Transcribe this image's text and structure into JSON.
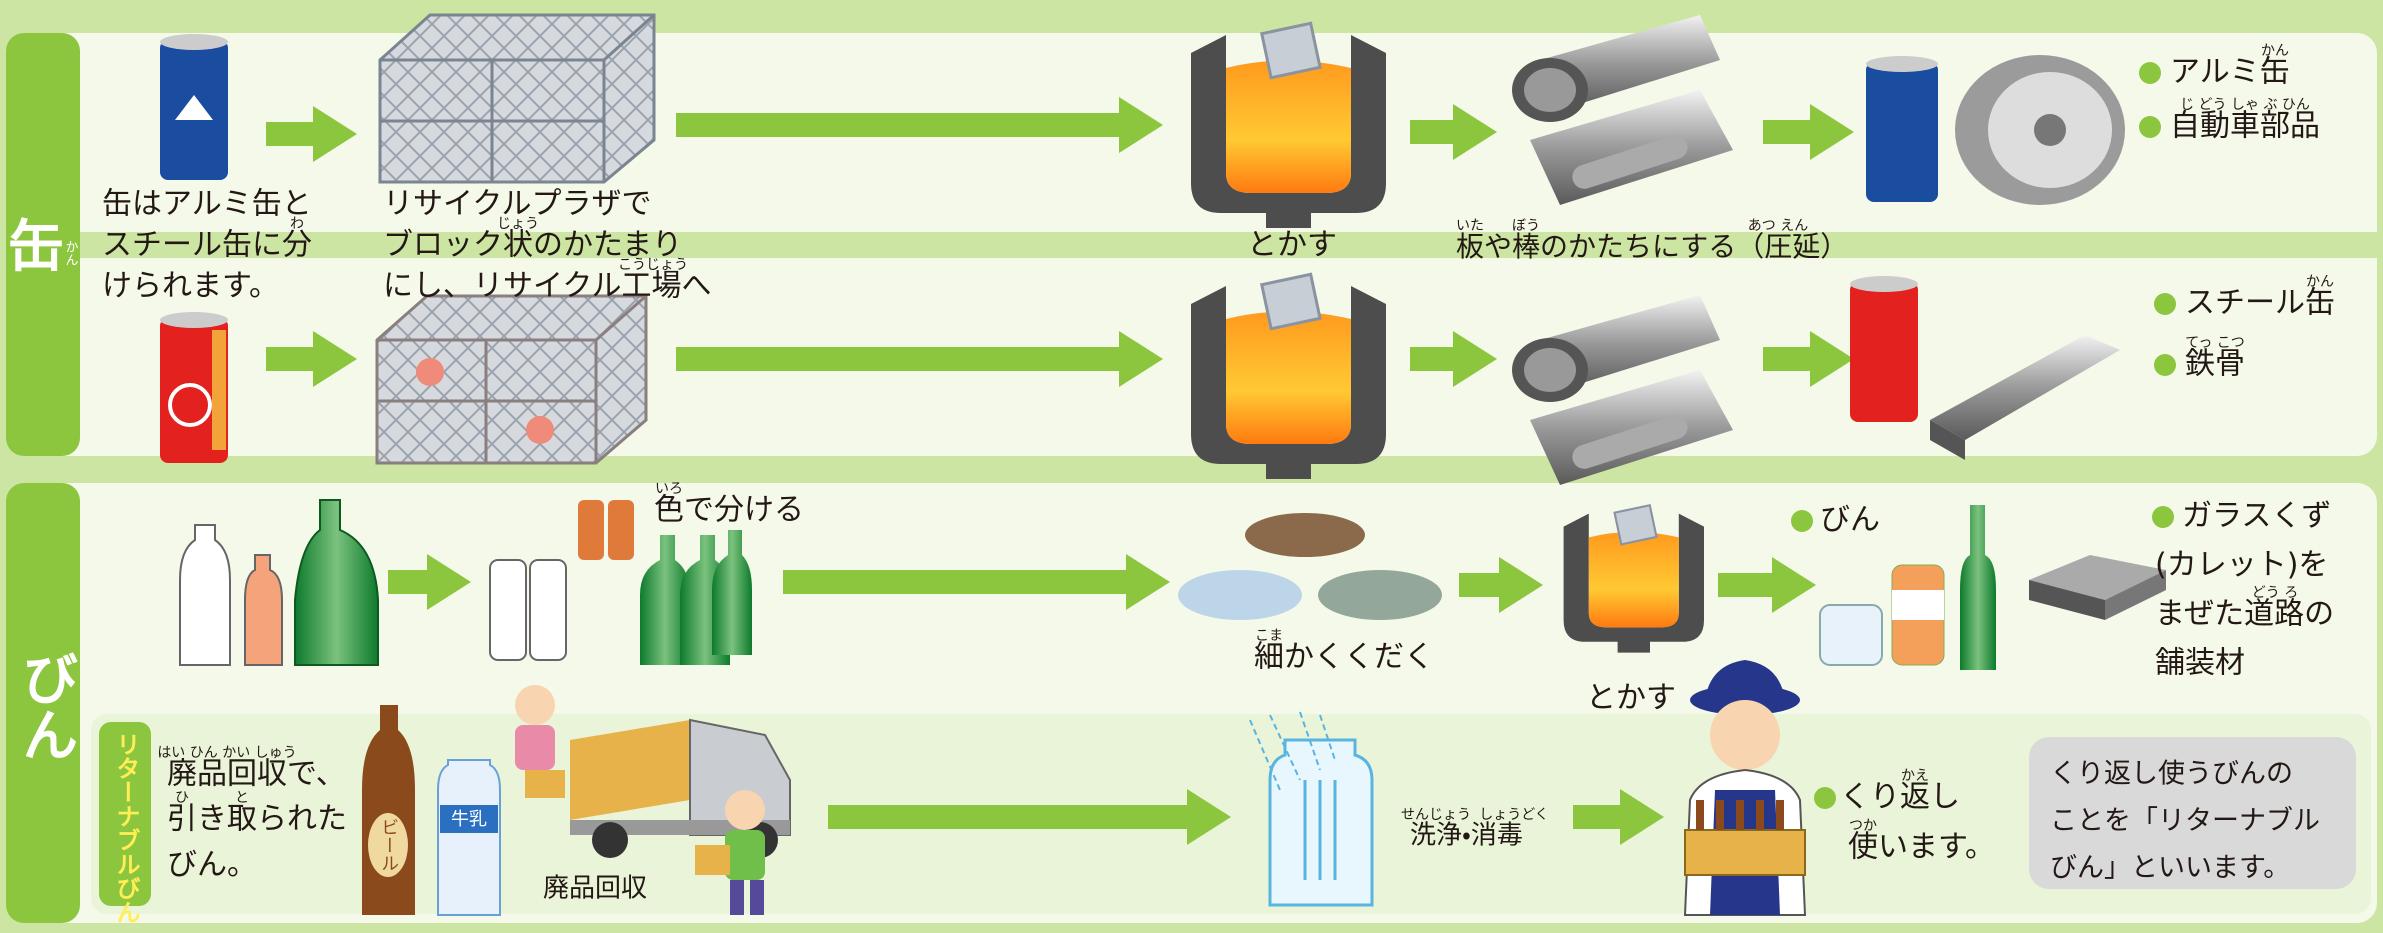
{
  "can": {
    "label": "缶",
    "label_ruby": "かん",
    "sort_text": [
      "缶はアルミ缶と",
      "スチール缶に分",
      "けられます。"
    ],
    "sort_ruby": [
      "わ"
    ],
    "plaza_text": [
      "リサイクルプラザで",
      "ブロック状のかたまり",
      "にし、リサイクル工場へ"
    ],
    "plaza_ruby": [
      "じょう",
      "こうじょう"
    ],
    "melt": "とかす",
    "rolling": "板や棒のかたちにする（圧延）",
    "rolling_ruby": [
      "いた",
      "ぼう",
      "あつ えん"
    ],
    "aluminum_products": [
      "アルミ缶",
      "自動車部品"
    ],
    "aluminum_ruby": [
      "かん",
      "じ どう しゃ ぶ ひん"
    ],
    "steel_products": [
      "スチール缶",
      "鉄骨"
    ],
    "steel_ruby": [
      "かん",
      "てっ こつ"
    ]
  },
  "bottle": {
    "label": "びん",
    "sort": "色で分ける",
    "sort_ruby": "いろ",
    "crush": "細かくくだく",
    "crush_ruby": "こま",
    "melt": "とかす",
    "product": "びん",
    "paving": [
      "ガラスくず",
      "(カレット)を",
      "まぜた道路の",
      "舗装材"
    ],
    "paving_ruby": "どう ろ",
    "returnable": {
      "label": "リターナブルびん",
      "collected": [
        "廃品回収で、",
        "引き取られた",
        "びん。"
      ],
      "collected_ruby": [
        "はい ひん かい しゅう",
        "ひ",
        "と"
      ],
      "beer": "ビール",
      "milk": "牛乳",
      "collection": "廃品回収",
      "washing": "洗浄・消毒",
      "washing_ruby": [
        "せんじょう",
        "しょうどく"
      ],
      "reuse": [
        "くり返し",
        "使います。"
      ],
      "reuse_ruby": [
        "かえ",
        "つか"
      ],
      "note": [
        "くり返し使うびんの",
        "ことを「リターナブル",
        "びん」といいます。"
      ]
    }
  }
}
